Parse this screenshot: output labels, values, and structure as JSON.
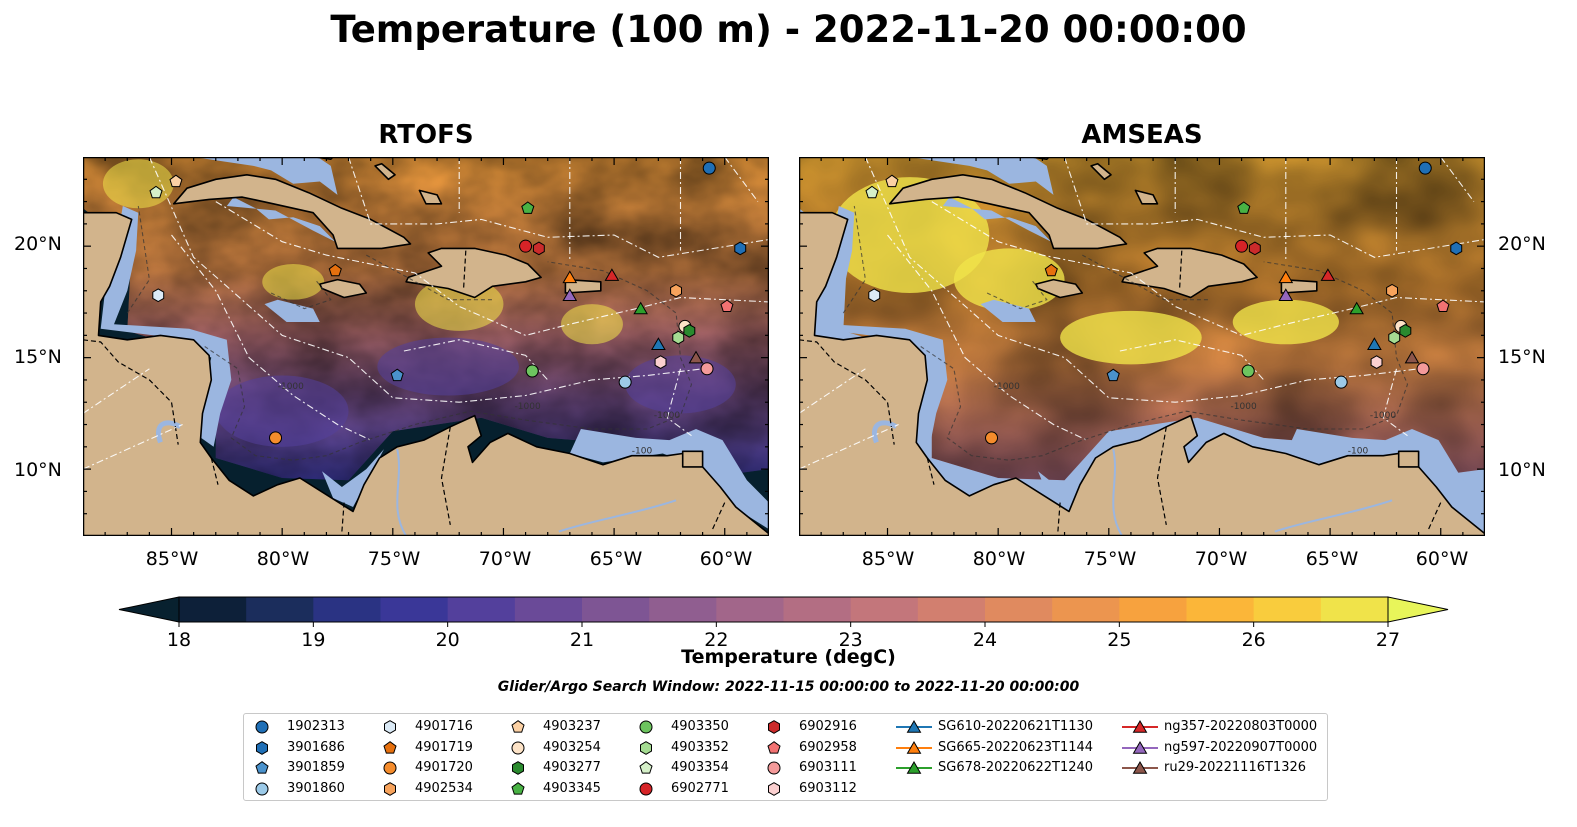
{
  "title": "Temperature (100 m) - 2022-11-20 00:00:00",
  "panels": [
    {
      "title": "RTOFS",
      "palette": "rtofs"
    },
    {
      "title": "AMSEAS",
      "palette": "amseas"
    }
  ],
  "map": {
    "lon_range": [
      -89,
      -58
    ],
    "lat_range": [
      7,
      24
    ],
    "lon_ticks": [
      {
        "lon": -85,
        "label": "85°W"
      },
      {
        "lon": -80,
        "label": "80°W"
      },
      {
        "lon": -75,
        "label": "75°W"
      },
      {
        "lon": -70,
        "label": "70°W"
      },
      {
        "lon": -65,
        "label": "65°W"
      },
      {
        "lon": -60,
        "label": "60°W"
      }
    ],
    "lat_ticks": [
      {
        "lat": 20,
        "label": "20°N"
      },
      {
        "lat": 15,
        "label": "15°N"
      },
      {
        "lat": 10,
        "label": "10°N"
      }
    ],
    "bathymetry_labels": [
      "-1000",
      "-100"
    ],
    "land_color": "#d2b48c",
    "shallow_water_color": "#9bb6e0"
  },
  "colorbar": {
    "label": "Temperature (degC)",
    "min": 18,
    "max": 27,
    "step": 0.5,
    "ticks": [
      "18",
      "19",
      "20",
      "21",
      "22",
      "23",
      "24",
      "25",
      "26",
      "27"
    ],
    "colors": [
      "#0d2039",
      "#1b2d5c",
      "#2a3383",
      "#3a3798",
      "#53409c",
      "#6a4a98",
      "#7e5594",
      "#905e90",
      "#a2668a",
      "#b36e83",
      "#c3767b",
      "#d27f6f",
      "#e08a5f",
      "#ec954f",
      "#f7a23e",
      "#fbb639",
      "#f9cc3d",
      "#f0e34a"
    ],
    "under_color": "#08212f",
    "over_color": "#e8f55a"
  },
  "search_window": "Glider/Argo Search Window: 2022-11-15 00:00:00 to 2022-11-20 00:00:00",
  "legend": [
    {
      "label": "1902313",
      "marker": "circle",
      "color": "#1f6fb6",
      "lon": -60.7,
      "lat": 23.5
    },
    {
      "label": "3901686",
      "marker": "hexagon",
      "color": "#1f6fb6",
      "lon": -59.3,
      "lat": 19.9
    },
    {
      "label": "3901859",
      "marker": "pentagon",
      "color": "#4a92cc",
      "lon": -74.8,
      "lat": 14.2
    },
    {
      "label": "3901860",
      "marker": "circle",
      "color": "#9ccae8",
      "lon": -64.5,
      "lat": 13.9
    },
    {
      "label": "4901716",
      "marker": "hexagon",
      "color": "#dbeaf6",
      "lon": -85.6,
      "lat": 17.8
    },
    {
      "label": "4901719",
      "marker": "pentagon",
      "color": "#e6700e",
      "lon": -77.6,
      "lat": 18.9
    },
    {
      "label": "4901720",
      "marker": "circle",
      "color": "#f58c2c",
      "lon": -80.3,
      "lat": 11.4
    },
    {
      "label": "4902534",
      "marker": "hexagon",
      "color": "#f7a35c",
      "lon": -62.2,
      "lat": 18.0
    },
    {
      "label": "4903237",
      "marker": "pentagon",
      "color": "#fcd1a4",
      "lon": -84.8,
      "lat": 22.9
    },
    {
      "label": "4903254",
      "marker": "circle",
      "color": "#fde3c7",
      "lon": -61.8,
      "lat": 16.4
    },
    {
      "label": "4903277",
      "marker": "hexagon",
      "color": "#2a8a2e",
      "lon": -61.6,
      "lat": 16.2
    },
    {
      "label": "4903345",
      "marker": "pentagon",
      "color": "#48b244",
      "lon": -68.9,
      "lat": 21.7
    },
    {
      "label": "4903350",
      "marker": "circle",
      "color": "#6dc45f",
      "lon": -68.7,
      "lat": 14.4
    },
    {
      "label": "4903352",
      "marker": "hexagon",
      "color": "#a5dc92",
      "lon": -62.1,
      "lat": 15.9
    },
    {
      "label": "4903354",
      "marker": "pentagon",
      "color": "#d5f0c8",
      "lon": -85.7,
      "lat": 22.4
    },
    {
      "label": "6902771",
      "marker": "circle",
      "color": "#d62327",
      "lon": -69.0,
      "lat": 20.0
    },
    {
      "label": "6902916",
      "marker": "hexagon",
      "color": "#cb2b2b",
      "lon": -68.4,
      "lat": 19.9
    },
    {
      "label": "6902958",
      "marker": "pentagon",
      "color": "#f27272",
      "lon": -59.9,
      "lat": 17.3
    },
    {
      "label": "6903111",
      "marker": "circle",
      "color": "#f49a9a",
      "lon": -60.8,
      "lat": 14.5
    },
    {
      "label": "6903112",
      "marker": "hexagon",
      "color": "#fbd0d0",
      "lon": -62.9,
      "lat": 14.8
    },
    {
      "label": "SG610-20220621T1130",
      "marker": "triangle",
      "color": "#1f77b4",
      "line": true,
      "lon": -63.0,
      "lat": 15.6
    },
    {
      "label": "SG665-20220623T1144",
      "marker": "triangle",
      "color": "#ff7f0e",
      "line": true,
      "lon": -67.0,
      "lat": 18.6
    },
    {
      "label": "SG678-20220622T1240",
      "marker": "triangle",
      "color": "#2ca02c",
      "line": true,
      "lon": -63.8,
      "lat": 17.2
    },
    {
      "label": "ng357-20220803T0000",
      "marker": "triangle",
      "color": "#d62728",
      "line": true,
      "lon": -65.1,
      "lat": 18.7
    },
    {
      "label": "ng597-20220907T0000",
      "marker": "triangle",
      "color": "#9467bd",
      "line": true,
      "lon": -67.0,
      "lat": 17.8
    },
    {
      "label": "ru29-20221116T1326",
      "marker": "triangle",
      "color": "#8c564b",
      "line": true,
      "lon": -61.3,
      "lat": 15.0
    }
  ]
}
